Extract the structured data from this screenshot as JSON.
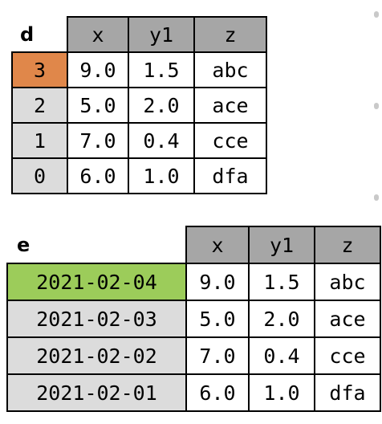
{
  "table_d": {
    "name": "d",
    "columns": [
      "x",
      "y1",
      "z"
    ],
    "rows": [
      {
        "index": "3",
        "x": "9.0",
        "y1": "1.5",
        "z": "abc"
      },
      {
        "index": "2",
        "x": "5.0",
        "y1": "2.0",
        "z": "ace"
      },
      {
        "index": "1",
        "x": "7.0",
        "y1": "0.4",
        "z": "cce"
      },
      {
        "index": "0",
        "x": "6.0",
        "y1": "1.0",
        "z": "dfa"
      }
    ],
    "highlighted_index_color": "#e0874a"
  },
  "table_e": {
    "name": "e",
    "columns": [
      "x",
      "y1",
      "z"
    ],
    "rows": [
      {
        "index": "2021-02-04",
        "x": "9.0",
        "y1": "1.5",
        "z": "abc"
      },
      {
        "index": "2021-02-03",
        "x": "5.0",
        "y1": "2.0",
        "z": "ace"
      },
      {
        "index": "2021-02-02",
        "x": "7.0",
        "y1": "0.4",
        "z": "cce"
      },
      {
        "index": "2021-02-01",
        "x": "6.0",
        "y1": "1.0",
        "z": "dfa"
      }
    ],
    "highlighted_index_color": "#9ccc5a"
  },
  "colors": {
    "header_bg": "#a6a6a6",
    "index_bg": "#dcdcdc",
    "value_bg": "#ffffff"
  }
}
